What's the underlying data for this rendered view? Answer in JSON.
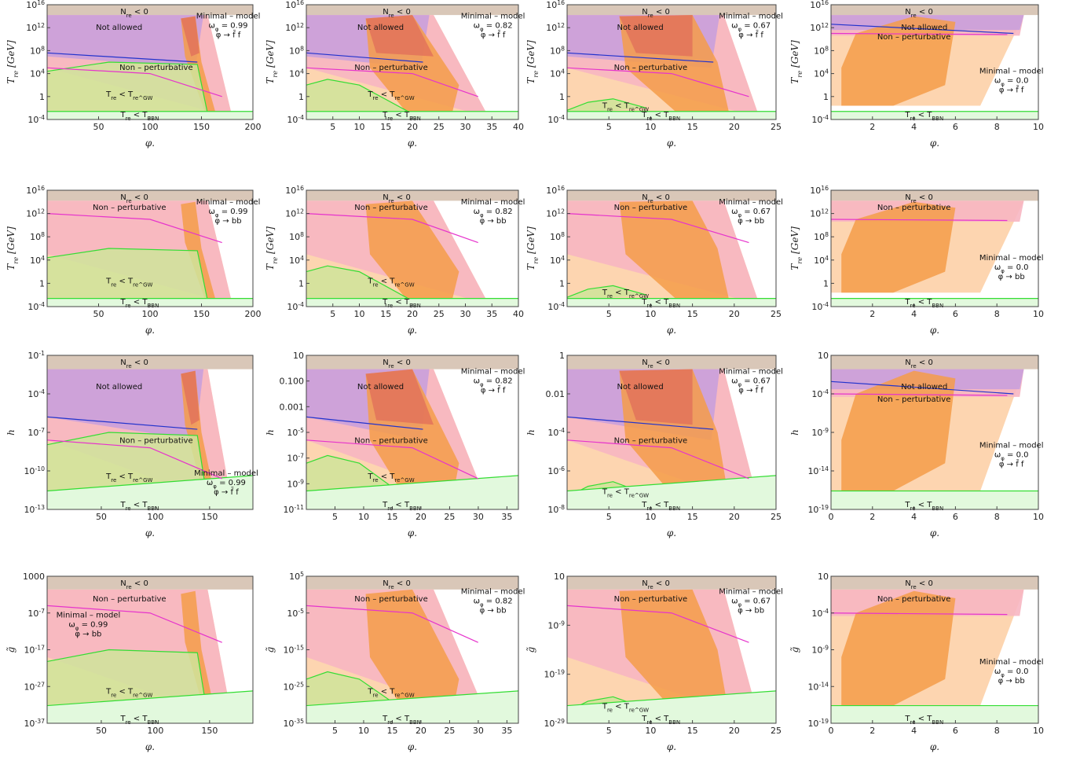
{
  "colors": {
    "nre_region": "#d9c7b8",
    "not_allowed": "#c9a0dc",
    "non_perturbative": "#f7b6c2",
    "allowed": "#fdd5b0",
    "gw": "#cfe49a",
    "bbn": "#e2f9dd",
    "orange_blob": "#f59c49",
    "red_blob": "#e06a5a",
    "pert_line": "#e633cc",
    "blue_line": "#2233cc",
    "green_line": "#33dd33"
  },
  "chart_data": [
    {
      "type": "area",
      "row": 0,
      "col": 0,
      "ylabel": "T_re [GeV]",
      "xlabel": "φ.",
      "xlim": [
        0,
        200
      ],
      "xticks": [
        "50",
        "100",
        "150",
        "200"
      ],
      "xtick_vals": [
        50,
        100,
        150,
        200
      ],
      "yticks": [
        "10^16",
        "10^12",
        "10^8",
        "10^4",
        "1",
        "10^-4"
      ],
      "labels": {
        "nre": "N_re < 0",
        "not_allowed": "Not allowed",
        "nonpert": "Non – perturbative",
        "gw": "T_re < T_re^GW",
        "bbn": "T_re < T_BBN",
        "model": "Minimal – model",
        "omega": "ω_φ = 0.99",
        "decay": "φ → f̄ f"
      }
    },
    {
      "type": "area",
      "row": 0,
      "col": 1,
      "ylabel": "T_re [GeV]",
      "xlabel": "φ.",
      "xlim": [
        0,
        40
      ],
      "xticks": [
        "5",
        "10",
        "15",
        "20",
        "25",
        "30",
        "35",
        "40"
      ],
      "xtick_vals": [
        5,
        10,
        15,
        20,
        25,
        30,
        35,
        40
      ],
      "yticks": [
        "10^16",
        "10^12",
        "10^8",
        "10^4",
        "1",
        "10^-4"
      ],
      "labels": {
        "nre": "N_re < 0",
        "not_allowed": "Not allowed",
        "nonpert": "Non – perturbative",
        "gw": "T_re < T_re^GW",
        "bbn": "T_re < T_BBN",
        "model": "Minimal – model",
        "omega": "ω_φ = 0.82",
        "decay": "φ → f̄ f"
      }
    },
    {
      "type": "area",
      "row": 0,
      "col": 2,
      "ylabel": "T_re [GeV]",
      "xlabel": "φ.",
      "xlim": [
        0,
        25
      ],
      "xticks": [
        "5",
        "10",
        "15",
        "20",
        "25"
      ],
      "xtick_vals": [
        5,
        10,
        15,
        20,
        25
      ],
      "yticks": [
        "10^16",
        "10^12",
        "10^8",
        "10^4",
        "1",
        "10^-4"
      ],
      "labels": {
        "nre": "N_re < 0",
        "not_allowed": "Not allowed",
        "nonpert": "Non – perturbative",
        "gw": "T_re < T_re^GW",
        "bbn": "T_re < T_BBN",
        "model": "Minimal – model",
        "omega": "ω_φ = 0.67",
        "decay": "φ → f̄ f"
      }
    },
    {
      "type": "area",
      "row": 0,
      "col": 3,
      "ylabel": "T_re [GeV]",
      "xlabel": "φ.",
      "xlim": [
        0,
        10
      ],
      "xticks": [
        "2",
        "4",
        "6",
        "8",
        "10"
      ],
      "xtick_vals": [
        2,
        4,
        6,
        8,
        10
      ],
      "yticks": [
        "10^16",
        "10^12",
        "10^8",
        "10^4",
        "1",
        "10^-4"
      ],
      "labels": {
        "nre": "N_re < 0",
        "not_allowed": "Not allowed",
        "nonpert": "Non – perturbative",
        "gw": "",
        "bbn": "T_re < T_BBN",
        "model": "Minimal – model",
        "omega": "ω_φ = 0.0",
        "decay": "φ → f̄ f"
      }
    },
    {
      "type": "area",
      "row": 1,
      "col": 0,
      "ylabel": "T_re [GeV]",
      "xlabel": "φ.",
      "xlim": [
        0,
        200
      ],
      "xticks": [
        "50",
        "100",
        "150",
        "200"
      ],
      "xtick_vals": [
        50,
        100,
        150,
        200
      ],
      "yticks": [
        "10^16",
        "10^12",
        "10^8",
        "10^4",
        "1",
        "10^-4"
      ],
      "labels": {
        "nre": "N_re < 0",
        "not_allowed": "",
        "nonpert": "Non – perturbative",
        "gw": "T_re < T_re^GW",
        "bbn": "T_re < T_BBN",
        "model": "Minimal – model",
        "omega": "ω_φ = 0.99",
        "decay": "φ → bb"
      }
    },
    {
      "type": "area",
      "row": 1,
      "col": 1,
      "ylabel": "T_re [GeV]",
      "xlabel": "φ.",
      "xlim": [
        0,
        40
      ],
      "xticks": [
        "5",
        "10",
        "15",
        "20",
        "25",
        "30",
        "35",
        "40"
      ],
      "xtick_vals": [
        5,
        10,
        15,
        20,
        25,
        30,
        35,
        40
      ],
      "yticks": [
        "10^16",
        "10^12",
        "10^8",
        "10^4",
        "1",
        "10^-4"
      ],
      "labels": {
        "nre": "N_re < 0",
        "not_allowed": "",
        "nonpert": "Non – perturbative",
        "gw": "T_re < T_re^GW",
        "bbn": "T_re < T_BBN",
        "model": "Minimal – model",
        "omega": "ω_φ = 0.82",
        "decay": "φ → bb"
      }
    },
    {
      "type": "area",
      "row": 1,
      "col": 2,
      "ylabel": "T_re [GeV]",
      "xlabel": "φ.",
      "xlim": [
        0,
        25
      ],
      "xticks": [
        "5",
        "10",
        "15",
        "20",
        "25"
      ],
      "xtick_vals": [
        5,
        10,
        15,
        20,
        25
      ],
      "yticks": [
        "10^16",
        "10^12",
        "10^8",
        "10^4",
        "1",
        "10^-4"
      ],
      "labels": {
        "nre": "N_re < 0",
        "not_allowed": "",
        "nonpert": "Non – perturbative",
        "gw": "T_re < T_re^GW",
        "bbn": "T_re < T_BBN",
        "model": "Minimal – model",
        "omega": "ω_φ = 0.67",
        "decay": "φ → bb"
      }
    },
    {
      "type": "area",
      "row": 1,
      "col": 3,
      "ylabel": "T_re [GeV]",
      "xlabel": "φ.",
      "xlim": [
        0,
        10
      ],
      "xticks": [
        "2",
        "4",
        "6",
        "8",
        "10"
      ],
      "xtick_vals": [
        2,
        4,
        6,
        8,
        10
      ],
      "yticks": [
        "10^16",
        "10^12",
        "10^8",
        "10^4",
        "1",
        "10^-4"
      ],
      "labels": {
        "nre": "N_re < 0",
        "not_allowed": "",
        "nonpert": "Non – perturbative",
        "gw": "",
        "bbn": "T_re < T_BBN",
        "model": "Minimal – model",
        "omega": "ω_φ = 0.0",
        "decay": "φ → bb"
      }
    },
    {
      "type": "area",
      "row": 2,
      "col": 0,
      "ylabel": "h",
      "xlabel": "φ.",
      "xlim": [
        0,
        190
      ],
      "xticks": [
        "50",
        "100",
        "150"
      ],
      "xtick_vals": [
        50,
        100,
        150
      ],
      "yticks": [
        "10^-1",
        "10^-4",
        "10^-7",
        "10^-10",
        "10^-13"
      ],
      "labels": {
        "nre": "N_re < 0",
        "not_allowed": "Not allowed",
        "nonpert": "Non – perturbative",
        "gw": "T_re < T_re^GW",
        "bbn": "T_re < T_BBN",
        "model": "Minimal – model",
        "omega": "ω_φ = 0.99",
        "decay": "φ → f̄ f"
      }
    },
    {
      "type": "area",
      "row": 2,
      "col": 1,
      "ylabel": "h",
      "xlabel": "φ.",
      "xlim": [
        0,
        37
      ],
      "xticks": [
        "5",
        "10",
        "15",
        "20",
        "25",
        "30",
        "35"
      ],
      "xtick_vals": [
        5,
        10,
        15,
        20,
        25,
        30,
        35
      ],
      "yticks": [
        "10",
        "0.100",
        "0.001",
        "10^-5",
        "10^-7",
        "10^-9",
        "10^-11"
      ],
      "labels": {
        "nre": "N_re < 0",
        "not_allowed": "Not allowed",
        "nonpert": "Non – perturbative",
        "gw": "T_re < T_re^GW",
        "bbn": "T_re < T_BBN",
        "model": "Minimal – model",
        "omega": "ω_φ = 0.82",
        "decay": "φ → f̄ f"
      }
    },
    {
      "type": "area",
      "row": 2,
      "col": 2,
      "ylabel": "h",
      "xlabel": "φ.",
      "xlim": [
        0,
        25
      ],
      "xticks": [
        "5",
        "10",
        "15",
        "20",
        "25"
      ],
      "xtick_vals": [
        5,
        10,
        15,
        20,
        25
      ],
      "yticks": [
        "1",
        "0.01",
        "10^-4",
        "10^-6",
        "10^-8"
      ],
      "labels": {
        "nre": "N_re < 0",
        "not_allowed": "Not allowed",
        "nonpert": "Non – perturbative",
        "gw": "T_re < T_re^GW",
        "bbn": "T_re < T_BBN",
        "model": "Minimal – model",
        "omega": "ω_φ = 0.67",
        "decay": "φ → f̄ f"
      }
    },
    {
      "type": "area",
      "row": 2,
      "col": 3,
      "ylabel": "h",
      "xlabel": "φ.",
      "xlim": [
        0,
        10
      ],
      "xticks": [
        "0",
        "2",
        "4",
        "6",
        "8",
        "10"
      ],
      "xtick_vals": [
        0,
        2,
        4,
        6,
        8,
        10
      ],
      "yticks": [
        "10",
        "10^-4",
        "10^-9",
        "10^-14",
        "10^-19"
      ],
      "labels": {
        "nre": "N_re < 0",
        "not_allowed": "Not allowed",
        "nonpert": "Non – perturbative",
        "gw": "",
        "bbn": "T_re < T_BBN",
        "model": "Minimal – model",
        "omega": "ω_φ = 0.0",
        "decay": "φ → f̄ f"
      }
    },
    {
      "type": "area",
      "row": 3,
      "col": 0,
      "ylabel": "g̃",
      "xlabel": "φ.",
      "xlim": [
        0,
        190
      ],
      "xticks": [
        "50",
        "100",
        "150"
      ],
      "xtick_vals": [
        50,
        100,
        150
      ],
      "yticks": [
        "1000",
        "10^-7",
        "10^-17",
        "10^-27",
        "10^-37"
      ],
      "labels": {
        "nre": "N_re < 0",
        "not_allowed": "",
        "nonpert": "Non – perturbative",
        "gw": "T_re < T_re^GW",
        "bbn": "T_re < T_BBN",
        "model": "Minimal – model",
        "omega": "ω_φ = 0.99",
        "decay": "φ → bb"
      }
    },
    {
      "type": "area",
      "row": 3,
      "col": 1,
      "ylabel": "g̃",
      "xlabel": "φ.",
      "xlim": [
        0,
        37
      ],
      "xticks": [
        "5",
        "10",
        "15",
        "20",
        "25",
        "30",
        "35"
      ],
      "xtick_vals": [
        5,
        10,
        15,
        20,
        25,
        30,
        35
      ],
      "yticks": [
        "10^5",
        "10^-5",
        "10^-15",
        "10^-25",
        "10^-35"
      ],
      "labels": {
        "nre": "N_re < 0",
        "not_allowed": "",
        "nonpert": "Non – perturbative",
        "gw": "T_re < T_re^GW",
        "bbn": "T_re < T_BBN",
        "model": "Minimal – model",
        "omega": "ω_φ = 0.82",
        "decay": "φ → bb"
      }
    },
    {
      "type": "area",
      "row": 3,
      "col": 2,
      "ylabel": "g̃",
      "xlabel": "φ.",
      "xlim": [
        0,
        25
      ],
      "xticks": [
        "5",
        "10",
        "15",
        "20",
        "25"
      ],
      "xtick_vals": [
        5,
        10,
        15,
        20,
        25
      ],
      "yticks": [
        "10",
        "10^-9",
        "10^-19",
        "10^-29"
      ],
      "labels": {
        "nre": "N_re < 0",
        "not_allowed": "",
        "nonpert": "Non – perturbative",
        "gw": "T_re < T_re^GW",
        "bbn": "T_re < T_BBN",
        "model": "Minimal – model",
        "omega": "ω_φ = 0.67",
        "decay": "φ → bb"
      }
    },
    {
      "type": "area",
      "row": 3,
      "col": 3,
      "ylabel": "g̃",
      "xlabel": "φ.",
      "xlim": [
        0,
        10
      ],
      "xticks": [
        "0",
        "2",
        "4",
        "6",
        "8",
        "10"
      ],
      "xtick_vals": [
        0,
        2,
        4,
        6,
        8,
        10
      ],
      "yticks": [
        "10",
        "10^-4",
        "10^-9",
        "10^-14",
        "10^-19"
      ],
      "labels": {
        "nre": "N_re < 0",
        "not_allowed": "",
        "nonpert": "Non – perturbative",
        "gw": "",
        "bbn": "T_re < T_BBN",
        "model": "Minimal – model",
        "omega": "ω_φ = 0.0",
        "decay": "φ → bb"
      }
    }
  ]
}
